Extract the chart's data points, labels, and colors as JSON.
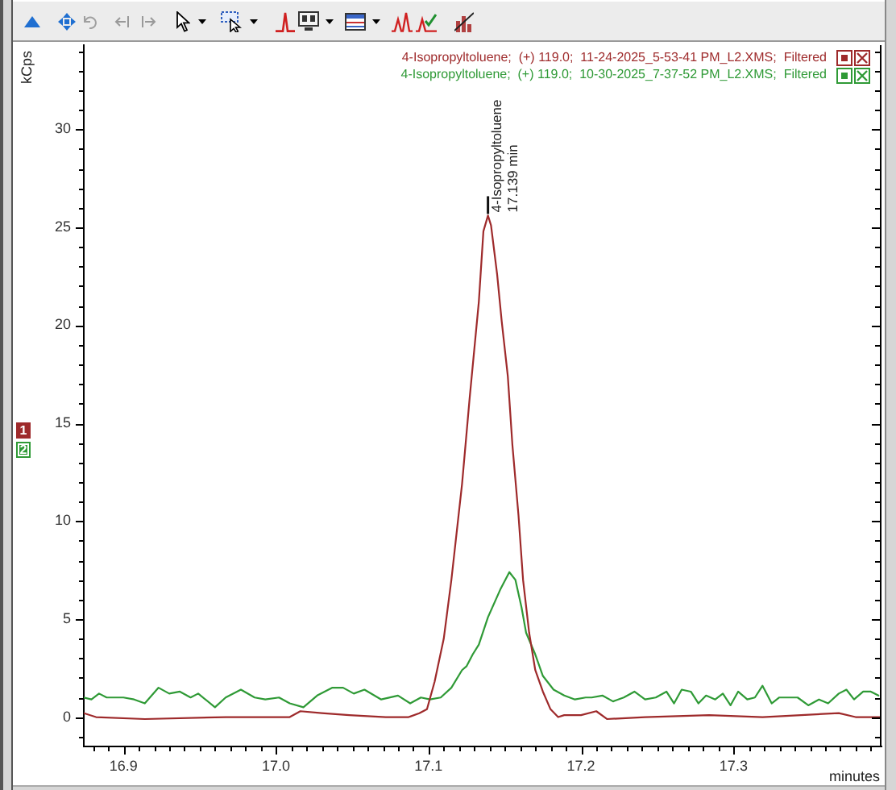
{
  "chart_data": {
    "type": "line",
    "xlabel": "minutes",
    "ylabel": "kCps",
    "xlim": [
      16.874,
      17.397
    ],
    "ylim": [
      -1.5,
      34.3
    ],
    "xticks": [
      {
        "value": 16.88,
        "label": null
      },
      {
        "value": 16.89,
        "label": null
      },
      16.9,
      {
        "value": 16.91,
        "label": null
      },
      {
        "value": 16.92,
        "label": null
      },
      {
        "value": 16.93,
        "label": null
      },
      {
        "value": 16.94,
        "label": null
      },
      {
        "value": 16.95,
        "label": null
      },
      {
        "value": 16.96,
        "label": null
      },
      {
        "value": 16.97,
        "label": null
      },
      {
        "value": 16.98,
        "label": null
      },
      {
        "value": 16.99,
        "label": null
      },
      {
        "value": 17,
        "label": "17.0"
      },
      {
        "value": 17.01,
        "label": null
      },
      {
        "value": 17.02,
        "label": null
      },
      {
        "value": 17.03,
        "label": null
      },
      {
        "value": 17.04,
        "label": null
      },
      {
        "value": 17.05,
        "label": null
      },
      {
        "value": 17.06,
        "label": null
      },
      {
        "value": 17.07,
        "label": null
      },
      {
        "value": 17.08,
        "label": null
      },
      {
        "value": 17.09,
        "label": null
      },
      17.1,
      {
        "value": 17.11,
        "label": null
      },
      {
        "value": 17.12,
        "label": null
      },
      {
        "value": 17.13,
        "label": null
      },
      {
        "value": 17.14,
        "label": null
      },
      {
        "value": 17.15,
        "label": null
      },
      {
        "value": 17.16,
        "label": null
      },
      {
        "value": 17.17,
        "label": null
      },
      {
        "value": 17.18,
        "label": null
      },
      {
        "value": 17.19,
        "label": null
      },
      17.2,
      {
        "value": 17.21,
        "label": null
      },
      {
        "value": 17.22,
        "label": null
      },
      {
        "value": 17.23,
        "label": null
      },
      {
        "value": 17.24,
        "label": null
      },
      {
        "value": 17.25,
        "label": null
      },
      {
        "value": 17.26,
        "label": null
      },
      {
        "value": 17.27,
        "label": null
      },
      {
        "value": 17.28,
        "label": null
      },
      {
        "value": 17.29,
        "label": null
      },
      17.3,
      {
        "value": 17.31,
        "label": null
      },
      {
        "value": 17.32,
        "label": null
      },
      {
        "value": 17.33,
        "label": null
      },
      {
        "value": 17.34,
        "label": null
      },
      {
        "value": 17.35,
        "label": null
      },
      {
        "value": 17.36,
        "label": null
      },
      {
        "value": 17.37,
        "label": null
      },
      {
        "value": 17.38,
        "label": null
      },
      {
        "value": 17.39,
        "label": null
      }
    ],
    "yticks": [
      {
        "value": -1,
        "label": null
      },
      0,
      {
        "value": 1,
        "label": null
      },
      {
        "value": 2,
        "label": null
      },
      {
        "value": 3,
        "label": null
      },
      {
        "value": 4,
        "label": null
      },
      5,
      {
        "value": 6,
        "label": null
      },
      {
        "value": 7,
        "label": null
      },
      {
        "value": 8,
        "label": null
      },
      {
        "value": 9,
        "label": null
      },
      10,
      {
        "value": 11,
        "label": null
      },
      {
        "value": 12,
        "label": null
      },
      {
        "value": 13,
        "label": null
      },
      {
        "value": 14,
        "label": null
      },
      15,
      {
        "value": 16,
        "label": null
      },
      {
        "value": 17,
        "label": null
      },
      {
        "value": 18,
        "label": null
      },
      {
        "value": 19,
        "label": null
      },
      20,
      {
        "value": 21,
        "label": null
      },
      {
        "value": 22,
        "label": null
      },
      {
        "value": 23,
        "label": null
      },
      {
        "value": 24,
        "label": null
      },
      25,
      {
        "value": 26,
        "label": null
      },
      {
        "value": 27,
        "label": null
      },
      {
        "value": 28,
        "label": null
      },
      {
        "value": 29,
        "label": null
      },
      30,
      {
        "value": 31,
        "label": null
      },
      {
        "value": 32,
        "label": null
      },
      {
        "value": 33,
        "label": null
      },
      {
        "value": 34,
        "label": null
      }
    ],
    "legend": "top right",
    "marker": "none",
    "line_style": "solid",
    "series": [
      {
        "name": "4-Isopropyltoluene;  (+) 119.0;  11-24-2025_5-53-41 PM_L2.XMS;  Filtered",
        "color": "#9e2a2b",
        "x": [
          16.874,
          16.882,
          16.914,
          16.967,
          17.009,
          17.016,
          17.03,
          17.048,
          17.072,
          17.087,
          17.094,
          17.099,
          17.104,
          17.11,
          17.115,
          17.122,
          17.127,
          17.133,
          17.136,
          17.139,
          17.141,
          17.145,
          17.148,
          17.152,
          17.155,
          17.159,
          17.162,
          17.166,
          17.17,
          17.175,
          17.18,
          17.185,
          17.189,
          17.2,
          17.21,
          17.217,
          17.242,
          17.284,
          17.319,
          17.369,
          17.38,
          17.397
        ],
        "values": [
          0.2,
          0.0,
          -0.1,
          0.0,
          0.0,
          0.3,
          0.2,
          0.1,
          0.0,
          0.0,
          0.2,
          0.4,
          1.8,
          4.0,
          7.0,
          11.9,
          16.3,
          21.2,
          24.8,
          25.6,
          25.1,
          22.6,
          20.2,
          17.4,
          13.9,
          10.3,
          7.0,
          4.3,
          2.4,
          1.3,
          0.4,
          0.0,
          0.1,
          0.1,
          0.3,
          -0.1,
          0.0,
          0.1,
          0.0,
          0.2,
          0.0,
          0.0
        ]
      },
      {
        "name": "4-Isopropyltoluene;  (+) 119.0;  10-30-2025_7-37-52 PM_L2.XMS;  Filtered",
        "color": "#2f9a36",
        "x": [
          16.874,
          16.879,
          16.884,
          16.889,
          16.9,
          16.907,
          16.914,
          16.923,
          16.93,
          16.937,
          16.944,
          16.949,
          16.96,
          16.967,
          16.977,
          16.986,
          16.993,
          17.002,
          17.009,
          17.018,
          17.027,
          17.037,
          17.044,
          17.051,
          17.058,
          17.069,
          17.08,
          17.088,
          17.095,
          17.101,
          17.108,
          17.115,
          17.122,
          17.125,
          17.129,
          17.133,
          17.139,
          17.147,
          17.153,
          17.157,
          17.161,
          17.164,
          17.17,
          17.175,
          17.182,
          17.189,
          17.196,
          17.203,
          17.207,
          17.214,
          17.221,
          17.228,
          17.235,
          17.242,
          17.249,
          17.256,
          17.261,
          17.266,
          17.272,
          17.277,
          17.282,
          17.288,
          17.293,
          17.298,
          17.303,
          17.309,
          17.314,
          17.319,
          17.325,
          17.33,
          17.335,
          17.342,
          17.349,
          17.356,
          17.362,
          17.369,
          17.374,
          17.379,
          17.385,
          17.39,
          17.395
        ],
        "values": [
          1.0,
          0.9,
          1.2,
          1.0,
          1.0,
          0.9,
          0.7,
          1.5,
          1.2,
          1.3,
          1.0,
          1.2,
          0.5,
          1.0,
          1.4,
          1.0,
          0.9,
          1.0,
          0.7,
          0.5,
          1.1,
          1.5,
          1.5,
          1.2,
          1.4,
          0.9,
          1.1,
          0.7,
          1.0,
          0.9,
          1.0,
          1.5,
          2.4,
          2.6,
          3.2,
          3.7,
          5.1,
          6.5,
          7.4,
          7.0,
          5.6,
          4.3,
          3.2,
          2.1,
          1.4,
          1.1,
          0.9,
          1.0,
          1.0,
          1.1,
          0.8,
          1.0,
          1.3,
          0.9,
          1.0,
          1.3,
          0.7,
          1.4,
          1.3,
          0.7,
          1.1,
          0.9,
          1.2,
          0.6,
          1.3,
          0.9,
          1.0,
          1.6,
          0.7,
          1.0,
          1.0,
          1.0,
          0.6,
          0.9,
          0.7,
          1.2,
          1.4,
          0.9,
          1.3,
          1.3,
          1.1
        ]
      }
    ],
    "annotations": [
      {
        "text": "4-Isopropyltoluene",
        "x": 17.139,
        "y": 25.6
      },
      {
        "text": "17.139 min",
        "x": 17.139,
        "y": 25.6
      },
      "1",
      "2"
    ]
  }
}
